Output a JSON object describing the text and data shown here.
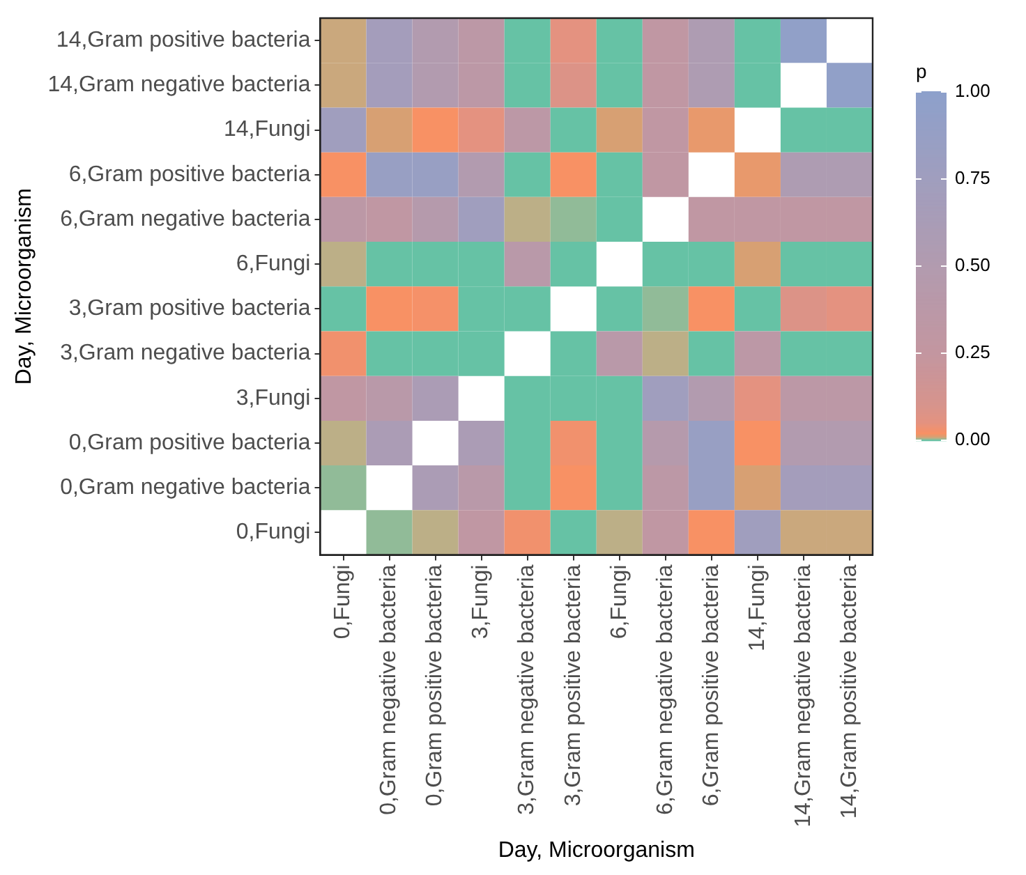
{
  "chart_data": {
    "type": "heatmap",
    "xlabel": "Day, Microorganism",
    "ylabel": "Day, Microorganism",
    "clabel": "p",
    "categories": [
      "0,Fungi",
      "0,Gram negative bacteria",
      "0,Gram positive bacteria",
      "3,Fungi",
      "3,Gram negative bacteria",
      "3,Gram positive bacteria",
      "6,Fungi",
      "6,Gram negative bacteria",
      "6,Gram positive bacteria",
      "14,Fungi",
      "14,Gram negative bacteria",
      "14,Gram positive bacteria"
    ],
    "y_categories": [
      "14,Gram positive bacteria",
      "14,Gram negative bacteria",
      "14,Fungi",
      "6,Gram positive bacteria",
      "6,Gram negative bacteria",
      "6,Fungi",
      "3,Gram positive bacteria",
      "3,Gram negative bacteria",
      "3,Fungi",
      "0,Gram positive bacteria",
      "0,Gram negative bacteria",
      "0,Fungi"
    ],
    "cells": [
      [
        0.008,
        0.7,
        0.5,
        0.35,
        0,
        0.05,
        0,
        0.3,
        0.55,
        0,
        0.95,
        null
      ],
      [
        0.008,
        0.7,
        0.5,
        0.35,
        0,
        0.08,
        0,
        0.3,
        0.55,
        0,
        null,
        0.95
      ],
      [
        0.75,
        0.01,
        0.02,
        0.05,
        0.35,
        0,
        0.01,
        0.3,
        0.015,
        null,
        0,
        0
      ],
      [
        0.02,
        0.85,
        0.85,
        0.5,
        0,
        0.02,
        0,
        0.3,
        null,
        0.015,
        0.55,
        0.55
      ],
      [
        0.35,
        0.3,
        0.45,
        0.75,
        0.006,
        0.003,
        0,
        null,
        0.3,
        0.3,
        0.3,
        0.3
      ],
      [
        0.006,
        0,
        0,
        0,
        0.4,
        0,
        null,
        0,
        0,
        0.01,
        0,
        0
      ],
      [
        0,
        0.02,
        0.025,
        0,
        0,
        null,
        0,
        0.003,
        0.02,
        0,
        0.08,
        0.05
      ],
      [
        0.03,
        0,
        0,
        0,
        null,
        0,
        0.4,
        0.006,
        0,
        0.35,
        0,
        0
      ],
      [
        0.3,
        0.4,
        0.6,
        null,
        0,
        0,
        0,
        0.75,
        0.5,
        0.05,
        0.35,
        0.35
      ],
      [
        0.006,
        0.6,
        null,
        0.6,
        0,
        0.03,
        0,
        0.45,
        0.85,
        0.02,
        0.5,
        0.5
      ],
      [
        0.003,
        null,
        0.6,
        0.4,
        0,
        0.02,
        0,
        0.35,
        0.85,
        0.01,
        0.7,
        0.7
      ],
      [
        null,
        0.003,
        0.006,
        0.3,
        0.03,
        0,
        0.006,
        0.3,
        0.02,
        0.75,
        0.008,
        0.008
      ]
    ],
    "clim": [
      0,
      1
    ],
    "cticks": [
      {
        "value": 0,
        "label": "0.00"
      },
      {
        "value": 0.25,
        "label": "0.25"
      },
      {
        "value": 0.5,
        "label": "0.50"
      },
      {
        "value": 0.75,
        "label": "0.75"
      },
      {
        "value": 1,
        "label": "1.00"
      }
    ]
  }
}
